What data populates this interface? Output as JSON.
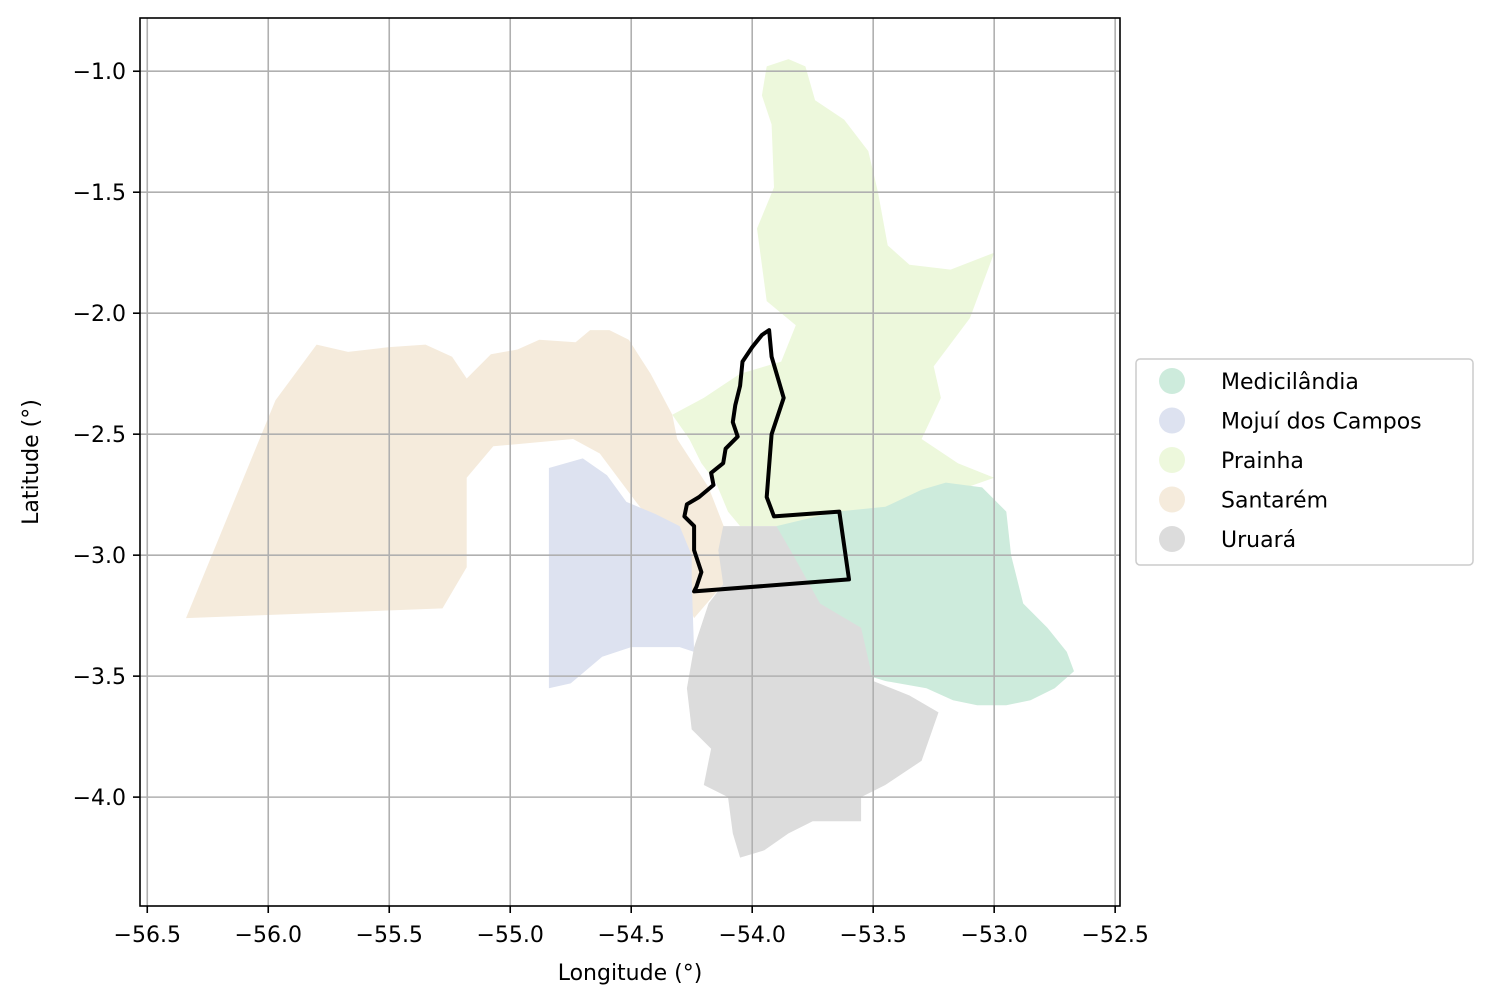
{
  "chart_data": {
    "type": "map",
    "xlabel": "Longitude (°)",
    "ylabel": "Latitude (°)",
    "xlim": [
      -56.53,
      -52.48
    ],
    "ylim": [
      -4.45,
      -0.78
    ],
    "xticks": [
      -56.5,
      -56.0,
      -55.5,
      -55.0,
      -54.5,
      -54.0,
      -53.5,
      -53.0,
      -52.5
    ],
    "yticks": [
      -1.0,
      -1.5,
      -2.0,
      -2.5,
      -3.0,
      -3.5,
      -4.0
    ],
    "grid": true,
    "legend": {
      "placement": "right",
      "entries": [
        {
          "name": "Medicilândia",
          "color": "#cdebdc"
        },
        {
          "name": "Mojuí dos Campos",
          "color": "#dde2f0"
        },
        {
          "name": "Prainha",
          "color": "#edf8dc"
        },
        {
          "name": "Santarém",
          "color": "#f5ebdc"
        },
        {
          "name": "Uruará",
          "color": "#dcdcdc"
        }
      ]
    },
    "regions": [
      {
        "name": "Santarém",
        "color": "#f5ebdc",
        "points": [
          [
            -56.34,
            -3.26
          ],
          [
            -55.28,
            -3.22
          ],
          [
            -55.18,
            -3.05
          ],
          [
            -55.18,
            -2.68
          ],
          [
            -55.07,
            -2.55
          ],
          [
            -54.74,
            -2.52
          ],
          [
            -54.63,
            -2.58
          ],
          [
            -54.48,
            -2.78
          ],
          [
            -54.37,
            -2.92
          ],
          [
            -54.28,
            -3.18
          ],
          [
            -54.24,
            -3.26
          ],
          [
            -54.12,
            -3.12
          ],
          [
            -54.11,
            -2.9
          ],
          [
            -54.18,
            -2.72
          ],
          [
            -54.31,
            -2.52
          ],
          [
            -54.33,
            -2.42
          ],
          [
            -54.42,
            -2.25
          ],
          [
            -54.51,
            -2.11
          ],
          [
            -54.59,
            -2.07
          ],
          [
            -54.67,
            -2.07
          ],
          [
            -54.73,
            -2.12
          ],
          [
            -54.88,
            -2.11
          ],
          [
            -54.97,
            -2.15
          ],
          [
            -55.08,
            -2.17
          ],
          [
            -55.18,
            -2.27
          ],
          [
            -55.24,
            -2.18
          ],
          [
            -55.35,
            -2.13
          ],
          [
            -55.5,
            -2.14
          ],
          [
            -55.67,
            -2.16
          ],
          [
            -55.8,
            -2.13
          ],
          [
            -55.97,
            -2.36
          ]
        ]
      },
      {
        "name": "Mojuí dos Campos",
        "color": "#dde2f0",
        "points": [
          [
            -54.84,
            -2.64
          ],
          [
            -54.7,
            -2.6
          ],
          [
            -54.6,
            -2.67
          ],
          [
            -54.52,
            -2.78
          ],
          [
            -54.4,
            -2.83
          ],
          [
            -54.3,
            -2.88
          ],
          [
            -54.25,
            -3.0
          ],
          [
            -54.25,
            -3.1
          ],
          [
            -54.24,
            -3.4
          ],
          [
            -54.3,
            -3.38
          ],
          [
            -54.5,
            -3.38
          ],
          [
            -54.62,
            -3.42
          ],
          [
            -54.75,
            -3.53
          ],
          [
            -54.84,
            -3.55
          ]
        ]
      },
      {
        "name": "Prainha",
        "color": "#edf8dc",
        "points": [
          [
            -53.94,
            -0.98
          ],
          [
            -53.85,
            -0.95
          ],
          [
            -53.78,
            -0.98
          ],
          [
            -53.74,
            -1.12
          ],
          [
            -53.62,
            -1.2
          ],
          [
            -53.52,
            -1.33
          ],
          [
            -53.48,
            -1.5
          ],
          [
            -53.44,
            -1.72
          ],
          [
            -53.35,
            -1.8
          ],
          [
            -53.18,
            -1.82
          ],
          [
            -53.0,
            -1.75
          ],
          [
            -53.1,
            -2.02
          ],
          [
            -53.25,
            -2.22
          ],
          [
            -53.22,
            -2.35
          ],
          [
            -53.3,
            -2.52
          ],
          [
            -53.15,
            -2.62
          ],
          [
            -53.0,
            -2.68
          ],
          [
            -53.2,
            -2.75
          ],
          [
            -53.35,
            -2.8
          ],
          [
            -53.52,
            -2.82
          ],
          [
            -53.7,
            -2.85
          ],
          [
            -53.85,
            -2.88
          ],
          [
            -54.05,
            -2.88
          ],
          [
            -54.1,
            -2.82
          ],
          [
            -54.15,
            -2.7
          ],
          [
            -54.21,
            -2.62
          ],
          [
            -54.26,
            -2.52
          ],
          [
            -54.33,
            -2.42
          ],
          [
            -54.2,
            -2.35
          ],
          [
            -54.05,
            -2.25
          ],
          [
            -53.88,
            -2.2
          ],
          [
            -53.82,
            -2.05
          ],
          [
            -53.94,
            -1.95
          ],
          [
            -53.98,
            -1.65
          ],
          [
            -53.91,
            -1.48
          ],
          [
            -53.92,
            -1.22
          ],
          [
            -53.96,
            -1.1
          ]
        ]
      },
      {
        "name": "Medicilândia",
        "color": "#cdebdc",
        "points": [
          [
            -53.9,
            -2.88
          ],
          [
            -53.65,
            -2.82
          ],
          [
            -53.45,
            -2.8
          ],
          [
            -53.3,
            -2.73
          ],
          [
            -53.2,
            -2.7
          ],
          [
            -53.05,
            -2.72
          ],
          [
            -52.95,
            -2.82
          ],
          [
            -52.93,
            -3.0
          ],
          [
            -52.88,
            -3.2
          ],
          [
            -52.78,
            -3.3
          ],
          [
            -52.7,
            -3.4
          ],
          [
            -52.67,
            -3.48
          ],
          [
            -52.75,
            -3.55
          ],
          [
            -52.85,
            -3.6
          ],
          [
            -52.95,
            -3.62
          ],
          [
            -53.07,
            -3.62
          ],
          [
            -53.17,
            -3.6
          ],
          [
            -53.28,
            -3.55
          ],
          [
            -53.45,
            -3.52
          ],
          [
            -53.58,
            -3.48
          ],
          [
            -53.7,
            -3.38
          ],
          [
            -53.8,
            -3.28
          ],
          [
            -53.88,
            -3.12
          ],
          [
            -53.9,
            -3.0
          ]
        ]
      },
      {
        "name": "Uruará",
        "color": "#dcdcdc",
        "points": [
          [
            -54.12,
            -2.88
          ],
          [
            -53.9,
            -2.88
          ],
          [
            -53.83,
            -3.0
          ],
          [
            -53.72,
            -3.2
          ],
          [
            -53.55,
            -3.3
          ],
          [
            -53.5,
            -3.52
          ],
          [
            -53.35,
            -3.58
          ],
          [
            -53.23,
            -3.65
          ],
          [
            -53.3,
            -3.85
          ],
          [
            -53.45,
            -3.95
          ],
          [
            -53.55,
            -4.0
          ],
          [
            -53.55,
            -4.1
          ],
          [
            -53.75,
            -4.1
          ],
          [
            -53.85,
            -4.15
          ],
          [
            -53.95,
            -4.22
          ],
          [
            -54.05,
            -4.25
          ],
          [
            -54.08,
            -4.15
          ],
          [
            -54.1,
            -4.0
          ],
          [
            -54.2,
            -3.95
          ],
          [
            -54.17,
            -3.8
          ],
          [
            -54.25,
            -3.72
          ],
          [
            -54.27,
            -3.55
          ],
          [
            -54.24,
            -3.38
          ],
          [
            -54.18,
            -3.2
          ],
          [
            -54.12,
            -3.12
          ],
          [
            -54.14,
            -2.98
          ]
        ]
      }
    ],
    "outline": {
      "points": [
        [
          -54.24,
          -3.15
        ],
        [
          -53.6,
          -3.1
        ],
        [
          -53.64,
          -2.82
        ],
        [
          -53.91,
          -2.84
        ],
        [
          -53.94,
          -2.76
        ],
        [
          -53.92,
          -2.5
        ],
        [
          -53.87,
          -2.35
        ],
        [
          -53.92,
          -2.18
        ],
        [
          -53.93,
          -2.07
        ],
        [
          -53.96,
          -2.09
        ],
        [
          -54.0,
          -2.14
        ],
        [
          -54.04,
          -2.2
        ],
        [
          -54.05,
          -2.3
        ],
        [
          -54.07,
          -2.38
        ],
        [
          -54.08,
          -2.45
        ],
        [
          -54.06,
          -2.51
        ],
        [
          -54.11,
          -2.56
        ],
        [
          -54.12,
          -2.62
        ],
        [
          -54.17,
          -2.66
        ],
        [
          -54.16,
          -2.71
        ],
        [
          -54.22,
          -2.76
        ],
        [
          -54.27,
          -2.79
        ],
        [
          -54.28,
          -2.84
        ],
        [
          -54.24,
          -2.88
        ],
        [
          -54.24,
          -2.98
        ],
        [
          -54.21,
          -3.07
        ],
        [
          -54.23,
          -3.13
        ]
      ],
      "color": "#000000"
    }
  }
}
